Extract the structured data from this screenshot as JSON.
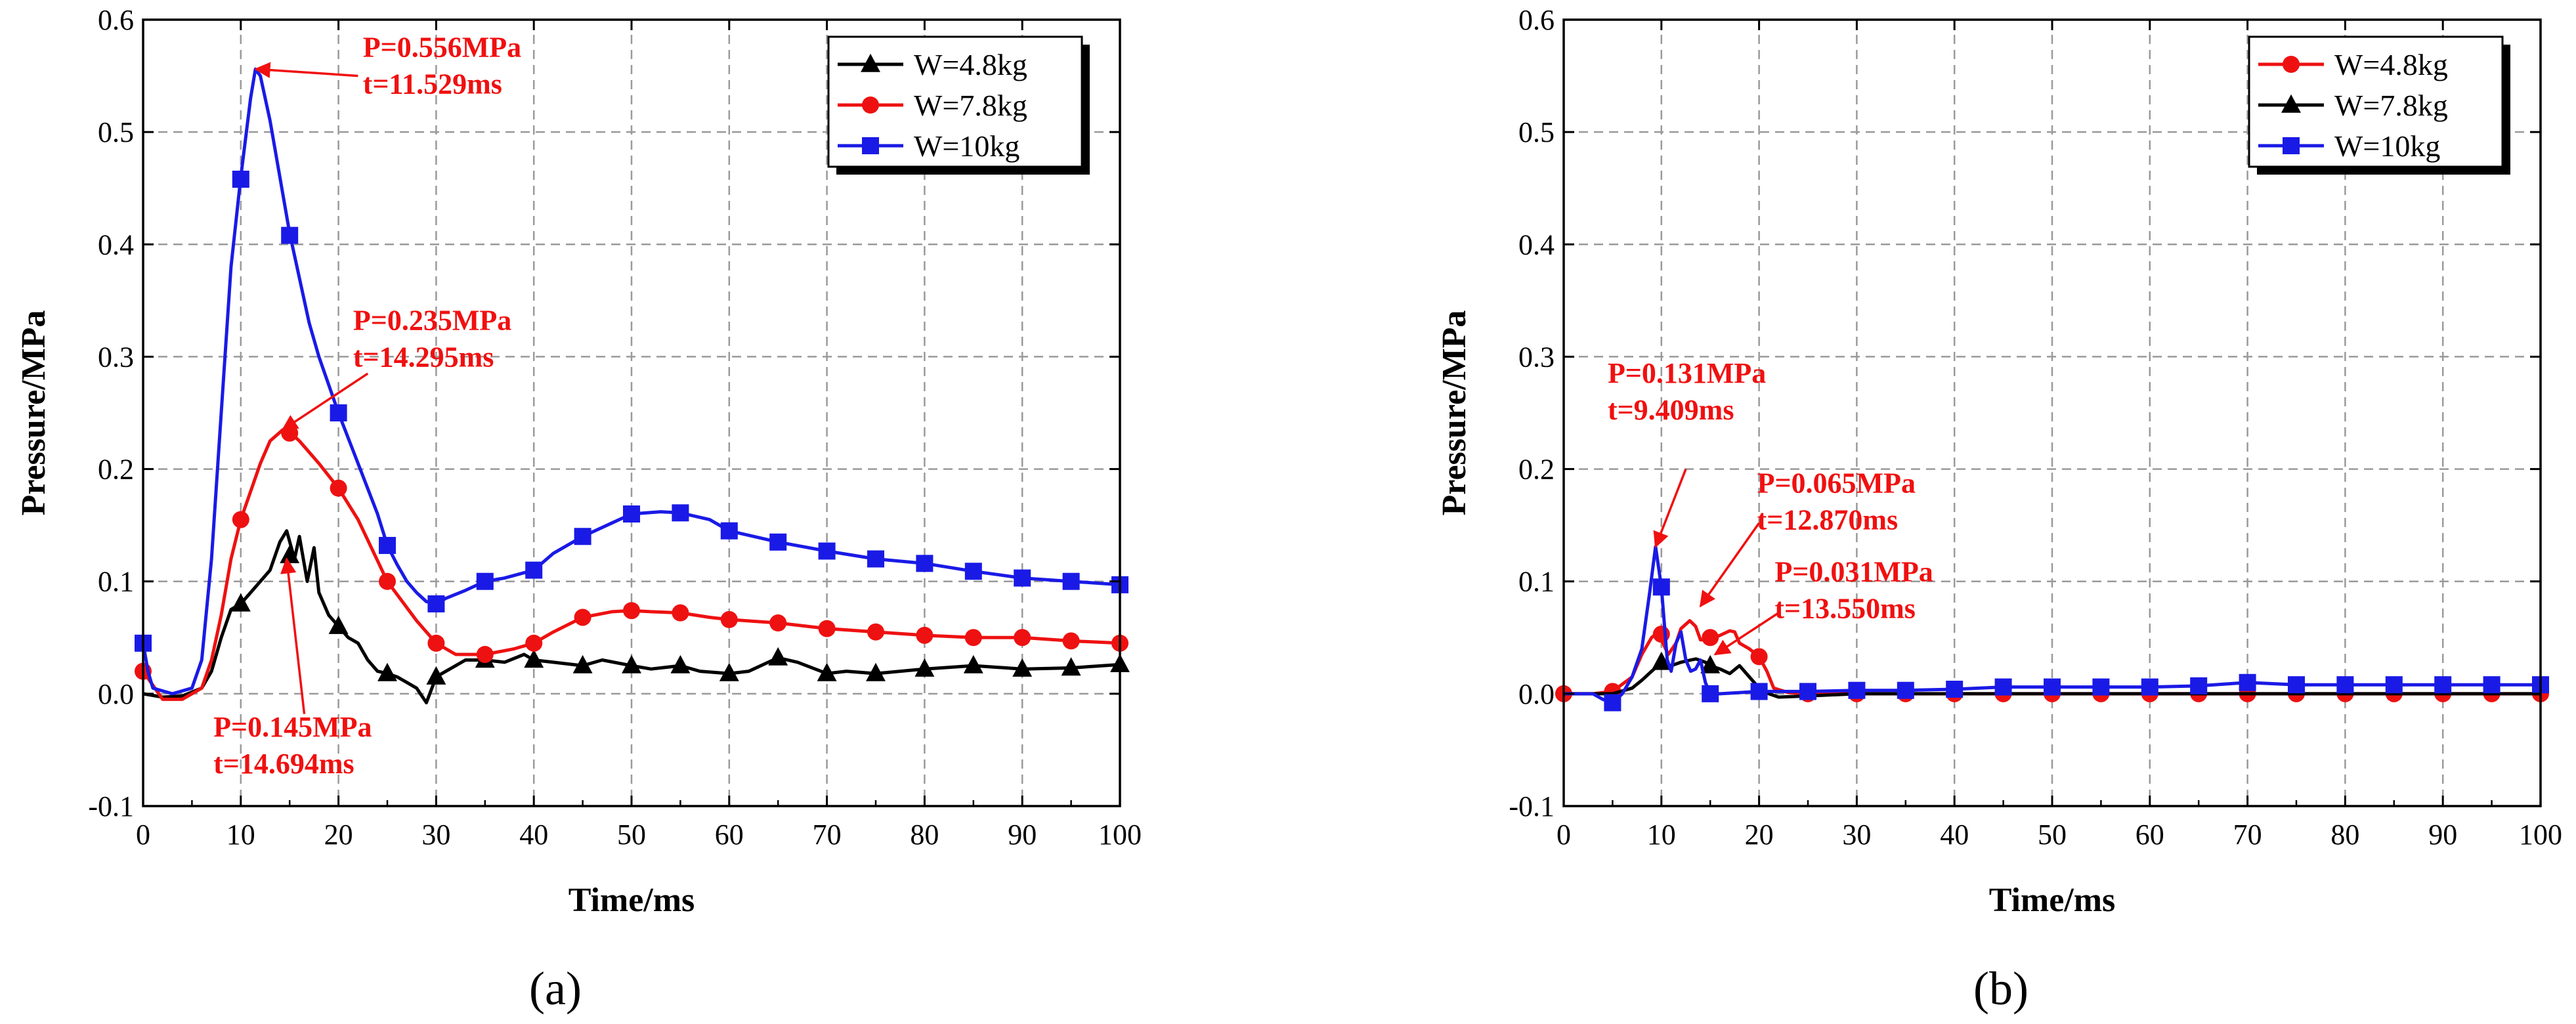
{
  "chart_data": [
    {
      "type": "line",
      "panel_label": "(a)",
      "xlabel": "Time/ms",
      "ylabel": "Pressure/MPa",
      "xlim": [
        0,
        100
      ],
      "ylim": [
        -0.1,
        0.6
      ],
      "xticks": [
        0,
        10,
        20,
        30,
        40,
        50,
        60,
        70,
        80,
        90,
        100
      ],
      "yticks": [
        -0.1,
        0.0,
        0.1,
        0.2,
        0.3,
        0.4,
        0.5,
        0.6
      ],
      "xtick_labels": [
        "0",
        "10",
        "20",
        "30",
        "40",
        "50",
        "60",
        "70",
        "80",
        "90",
        "100"
      ],
      "ytick_labels": [
        "-0.1",
        "0.0",
        "0.1",
        "0.2",
        "0.3",
        "0.4",
        "0.5",
        "0.6"
      ],
      "grid": true,
      "legend_position": "top-right",
      "series": [
        {
          "name": "W=4.8kg",
          "color": "#000000",
          "marker": "triangle",
          "x": [
            0,
            2,
            4,
            6,
            7,
            8,
            9,
            10,
            11,
            12,
            13,
            14,
            14.7,
            15.5,
            16,
            16.8,
            17.5,
            18,
            19,
            20,
            21,
            22,
            23,
            24,
            25,
            26,
            27,
            28,
            29,
            30,
            31,
            32,
            33,
            35,
            37,
            39,
            40,
            42,
            45,
            47,
            50,
            52,
            55,
            57,
            60,
            62,
            64,
            65,
            67,
            70,
            72,
            75,
            80,
            85,
            90,
            95,
            100
          ],
          "y": [
            0.0,
            -0.003,
            -0.002,
            0.005,
            0.02,
            0.05,
            0.075,
            0.08,
            0.09,
            0.1,
            0.11,
            0.135,
            0.145,
            0.12,
            0.14,
            0.1,
            0.13,
            0.09,
            0.07,
            0.06,
            0.05,
            0.045,
            0.03,
            0.02,
            0.018,
            0.015,
            0.01,
            0.005,
            -0.008,
            0.015,
            0.02,
            0.025,
            0.03,
            0.03,
            0.028,
            0.035,
            0.03,
            0.028,
            0.025,
            0.03,
            0.025,
            0.022,
            0.025,
            0.02,
            0.018,
            0.02,
            0.028,
            0.032,
            0.028,
            0.018,
            0.02,
            0.018,
            0.022,
            0.025,
            0.022,
            0.023,
            0.026
          ],
          "marker_x": [
            10,
            15,
            20,
            25,
            30,
            35,
            40,
            45,
            50,
            55,
            60,
            65,
            70,
            75,
            80,
            85,
            90,
            95,
            100
          ],
          "marker_y": [
            0.08,
            0.123,
            0.06,
            0.018,
            0.015,
            0.03,
            0.03,
            0.025,
            0.025,
            0.025,
            0.018,
            0.032,
            0.018,
            0.018,
            0.022,
            0.025,
            0.022,
            0.023,
            0.026
          ]
        },
        {
          "name": "W=7.8kg",
          "color": "#ee1111",
          "marker": "circle",
          "x": [
            0,
            2,
            4,
            6,
            7,
            8,
            9,
            10,
            11,
            12,
            13,
            14.3,
            15,
            16,
            18,
            20,
            22,
            25,
            28,
            30,
            32,
            35,
            38,
            40,
            42,
            45,
            48,
            50,
            52,
            55,
            58,
            60,
            65,
            70,
            75,
            80,
            85,
            90,
            95,
            100
          ],
          "y": [
            0.02,
            -0.005,
            -0.005,
            0.005,
            0.03,
            0.07,
            0.12,
            0.155,
            0.18,
            0.205,
            0.225,
            0.235,
            0.233,
            0.225,
            0.205,
            0.183,
            0.155,
            0.1,
            0.065,
            0.045,
            0.035,
            0.035,
            0.04,
            0.045,
            0.055,
            0.068,
            0.073,
            0.074,
            0.073,
            0.072,
            0.068,
            0.066,
            0.063,
            0.058,
            0.055,
            0.052,
            0.05,
            0.05,
            0.047,
            0.045
          ],
          "marker_x": [
            0,
            10,
            15,
            20,
            25,
            30,
            35,
            40,
            45,
            50,
            55,
            60,
            65,
            70,
            75,
            80,
            85,
            90,
            95,
            100
          ],
          "marker_y": [
            0.02,
            0.155,
            0.232,
            0.183,
            0.1,
            0.045,
            0.035,
            0.045,
            0.068,
            0.074,
            0.072,
            0.066,
            0.063,
            0.058,
            0.055,
            0.052,
            0.05,
            0.05,
            0.047,
            0.045
          ]
        },
        {
          "name": "W=10kg",
          "color": "#1a1ae6",
          "marker": "square",
          "x": [
            0,
            0.5,
            1,
            3,
            5,
            6,
            7,
            8,
            9,
            10,
            11,
            11.5,
            12,
            13,
            14,
            15,
            16,
            17,
            18,
            19,
            20,
            22,
            24,
            25,
            26,
            27,
            28,
            29,
            30,
            31,
            33,
            35,
            37,
            40,
            42,
            45,
            48,
            50,
            53,
            55,
            58,
            60,
            65,
            70,
            75,
            80,
            85,
            90,
            95,
            100
          ],
          "y": [
            0.045,
            0.02,
            0.005,
            0.0,
            0.005,
            0.03,
            0.12,
            0.25,
            0.38,
            0.46,
            0.53,
            0.556,
            0.55,
            0.51,
            0.46,
            0.41,
            0.37,
            0.33,
            0.3,
            0.275,
            0.25,
            0.205,
            0.16,
            0.132,
            0.115,
            0.1,
            0.09,
            0.082,
            0.08,
            0.085,
            0.092,
            0.1,
            0.103,
            0.11,
            0.125,
            0.14,
            0.152,
            0.16,
            0.162,
            0.161,
            0.155,
            0.145,
            0.135,
            0.127,
            0.12,
            0.116,
            0.109,
            0.103,
            0.1,
            0.097
          ],
          "marker_x": [
            0,
            10,
            15,
            20,
            25,
            30,
            35,
            40,
            45,
            50,
            55,
            60,
            65,
            70,
            75,
            80,
            85,
            90,
            95,
            100
          ],
          "marker_y": [
            0.045,
            0.458,
            0.408,
            0.25,
            0.132,
            0.08,
            0.1,
            0.11,
            0.14,
            0.16,
            0.161,
            0.145,
            0.135,
            0.127,
            0.12,
            0.116,
            0.109,
            0.103,
            0.1,
            0.097
          ]
        }
      ],
      "annotations": [
        {
          "lines": [
            "P=0.556MPa",
            "t=11.529ms"
          ],
          "point": [
            11.529,
            0.556
          ],
          "text_anchor": [
            22.5,
            0.567
          ],
          "arrow_from": [
            22,
            0.55
          ]
        },
        {
          "lines": [
            "P=0.235MPa",
            "t=14.295ms"
          ],
          "point": [
            14.295,
            0.235
          ],
          "text_anchor": [
            21.5,
            0.324
          ],
          "arrow_from": [
            23,
            0.285
          ]
        },
        {
          "lines": [
            "P=0.145MPa",
            "t=14.694ms"
          ],
          "point": [
            14.694,
            0.12
          ],
          "text_anchor": [
            7.2,
            -0.038
          ],
          "arrow_from": [
            16.5,
            -0.018
          ]
        }
      ]
    },
    {
      "type": "line",
      "panel_label": "(b)",
      "xlabel": "Time/ms",
      "ylabel": "Pressure/MPa",
      "xlim": [
        0,
        100
      ],
      "ylim": [
        -0.1,
        0.6
      ],
      "xticks": [
        0,
        10,
        20,
        30,
        40,
        50,
        60,
        70,
        80,
        90,
        100
      ],
      "yticks": [
        -0.1,
        0.0,
        0.1,
        0.2,
        0.3,
        0.4,
        0.5,
        0.6
      ],
      "xtick_labels": [
        "0",
        "10",
        "20",
        "30",
        "40",
        "50",
        "60",
        "70",
        "80",
        "90",
        "100"
      ],
      "ytick_labels": [
        "-0.1",
        "0.0",
        "0.1",
        "0.2",
        "0.3",
        "0.4",
        "0.5",
        "0.6"
      ],
      "grid": true,
      "legend_position": "top-right",
      "series": [
        {
          "name": "W=4.8kg",
          "color": "#ee1111",
          "marker": "circle",
          "x": [
            0,
            3,
            5,
            7,
            8,
            9,
            9.4,
            10,
            10.7,
            11.5,
            12,
            12.9,
            13.5,
            14,
            15,
            16,
            17,
            17.5,
            18,
            19,
            20,
            20.8,
            21.5,
            23,
            25,
            30,
            40,
            50,
            60,
            70,
            80,
            90,
            100
          ],
          "y": [
            0.0,
            0.0,
            0.002,
            0.015,
            0.035,
            0.05,
            0.053,
            0.048,
            0.035,
            0.045,
            0.058,
            0.065,
            0.06,
            0.048,
            0.048,
            0.052,
            0.056,
            0.055,
            0.045,
            0.04,
            0.033,
            0.02,
            0.005,
            0.001,
            0.0,
            0.0,
            0.0,
            0.0,
            0.0,
            0.0,
            0.0,
            0.0,
            0.0
          ],
          "marker_x": [
            0,
            5,
            10,
            15,
            20,
            25,
            30,
            35,
            40,
            45,
            50,
            55,
            60,
            65,
            70,
            75,
            80,
            85,
            90,
            95,
            100
          ],
          "marker_y": [
            0.0,
            0.002,
            0.053,
            0.05,
            0.033,
            0.0,
            0.0,
            0.0,
            0.0,
            0.0,
            0.0,
            0.0,
            0.0,
            0.0,
            0.0,
            0.0,
            0.0,
            0.0,
            0.0,
            0.0,
            0.0
          ]
        },
        {
          "name": "W=7.8kg",
          "color": "#000000",
          "marker": "triangle",
          "x": [
            0,
            5,
            7,
            8,
            9,
            10,
            11,
            12,
            13,
            13.55,
            14.5,
            15,
            16,
            17,
            18,
            19,
            20,
            21,
            22,
            25,
            30,
            40,
            50,
            60,
            70,
            80,
            90,
            100
          ],
          "y": [
            0.0,
            0.0,
            0.005,
            0.012,
            0.02,
            0.028,
            0.025,
            0.028,
            0.03,
            0.031,
            0.028,
            0.025,
            0.022,
            0.018,
            0.025,
            0.015,
            0.005,
            0.0,
            -0.003,
            -0.002,
            0.0,
            0.0,
            0.0,
            0.0,
            0.0,
            0.0,
            0.0,
            0.0
          ],
          "marker_x": [
            10,
            15
          ],
          "marker_y": [
            0.028,
            0.025
          ]
        },
        {
          "name": "W=10kg",
          "color": "#1a1ae6",
          "marker": "square",
          "x": [
            0,
            3,
            4,
            5,
            6,
            7,
            8,
            8.8,
            9.4,
            10,
            10.6,
            11,
            11.5,
            12,
            12.5,
            13,
            13.5,
            14,
            14.5,
            15,
            16,
            18,
            20,
            25,
            30,
            35,
            40,
            45,
            50,
            55,
            60,
            65,
            70,
            75,
            80,
            85,
            90,
            95,
            100
          ],
          "y": [
            0.0,
            0.0,
            -0.005,
            -0.008,
            0.0,
            0.015,
            0.04,
            0.09,
            0.131,
            0.095,
            0.03,
            0.02,
            0.045,
            0.055,
            0.03,
            0.02,
            0.022,
            0.03,
            0.01,
            0.0,
            0.0,
            0.001,
            0.002,
            0.002,
            0.003,
            0.003,
            0.004,
            0.006,
            0.006,
            0.006,
            0.006,
            0.007,
            0.01,
            0.008,
            0.008,
            0.008,
            0.008,
            0.008,
            0.008
          ],
          "marker_x": [
            5,
            10,
            15,
            20,
            25,
            30,
            35,
            40,
            45,
            50,
            55,
            60,
            65,
            70,
            75,
            80,
            85,
            90,
            95,
            100
          ],
          "marker_y": [
            -0.008,
            0.095,
            0.0,
            0.002,
            0.002,
            0.003,
            0.003,
            0.004,
            0.006,
            0.006,
            0.006,
            0.006,
            0.007,
            0.01,
            0.008,
            0.008,
            0.008,
            0.008,
            0.008,
            0.008
          ]
        }
      ],
      "annotations": [
        {
          "lines": [
            "P=0.131MPa",
            "t=9.409ms"
          ],
          "point": [
            9.409,
            0.131
          ],
          "text_anchor": [
            4.5,
            0.277
          ],
          "arrow_from": [
            12.5,
            0.2
          ]
        },
        {
          "lines": [
            "P=0.065MPa",
            "t=12.870ms"
          ],
          "point": [
            14,
            0.078
          ],
          "text_anchor": [
            19.8,
            0.179
          ],
          "arrow_from": [
            20,
            0.152
          ]
        },
        {
          "lines": [
            "P=0.031MPa",
            "t=13.550ms"
          ],
          "point": [
            15.5,
            0.035
          ],
          "text_anchor": [
            21.6,
            0.1
          ],
          "arrow_from": [
            22,
            0.072
          ]
        }
      ]
    }
  ]
}
